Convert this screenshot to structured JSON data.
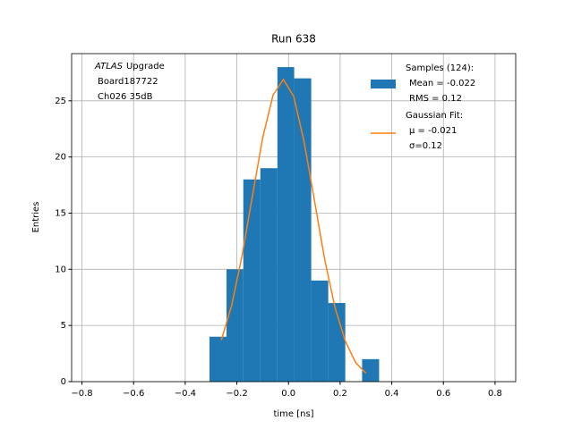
{
  "chart_data": {
    "type": "histogram",
    "title": "Run 638",
    "xlabel": "time [ns]",
    "ylabel": "Entries",
    "annotation": {
      "italic": "ATLAS",
      "rest": "Upgrade",
      "lines": [
        "Board187722",
        "Ch026 35dB"
      ]
    },
    "bins": [
      -0.306,
      -0.24,
      -0.175,
      -0.109,
      -0.043,
      0.022,
      0.088,
      0.154,
      0.22,
      0.285,
      0.351
    ],
    "series": [
      {
        "name": "Samples (124):",
        "stats": [
          "Mean = -0.022",
          "RMS = 0.12"
        ],
        "color": "#1f77b4",
        "type": "histogram",
        "values": [
          4,
          10,
          18,
          19,
          28,
          27,
          9,
          7,
          0,
          2
        ]
      },
      {
        "name": "Gaussian Fit:",
        "stats": [
          "μ = -0.021",
          "σ=0.12"
        ],
        "color": "#ff7f0e",
        "type": "line",
        "x": [
          -0.26,
          -0.22,
          -0.18,
          -0.14,
          -0.1,
          -0.06,
          -0.02,
          0.02,
          0.06,
          0.1,
          0.14,
          0.18,
          0.22,
          0.26,
          0.3
        ],
        "values": [
          3.7,
          6.8,
          11.2,
          16.5,
          21.7,
          25.5,
          26.9,
          25.4,
          21.4,
          16.2,
          10.9,
          6.6,
          3.6,
          1.7,
          0.75
        ]
      }
    ],
    "xlim": [
      -0.84,
      0.88
    ],
    "ylim": [
      0,
      29.2
    ],
    "xticks": [
      {
        "value": -0.8,
        "label": "−0.8"
      },
      {
        "value": -0.6,
        "label": "−0.6"
      },
      {
        "value": -0.4,
        "label": "−0.4"
      },
      {
        "value": -0.2,
        "label": "−0.2"
      },
      {
        "value": 0,
        "label": "0.0"
      },
      0.2,
      0.4,
      0.6,
      0.8
    ],
    "yticks": [
      0,
      5,
      10,
      15,
      20,
      25
    ],
    "grid": true,
    "legend": "upper right"
  }
}
